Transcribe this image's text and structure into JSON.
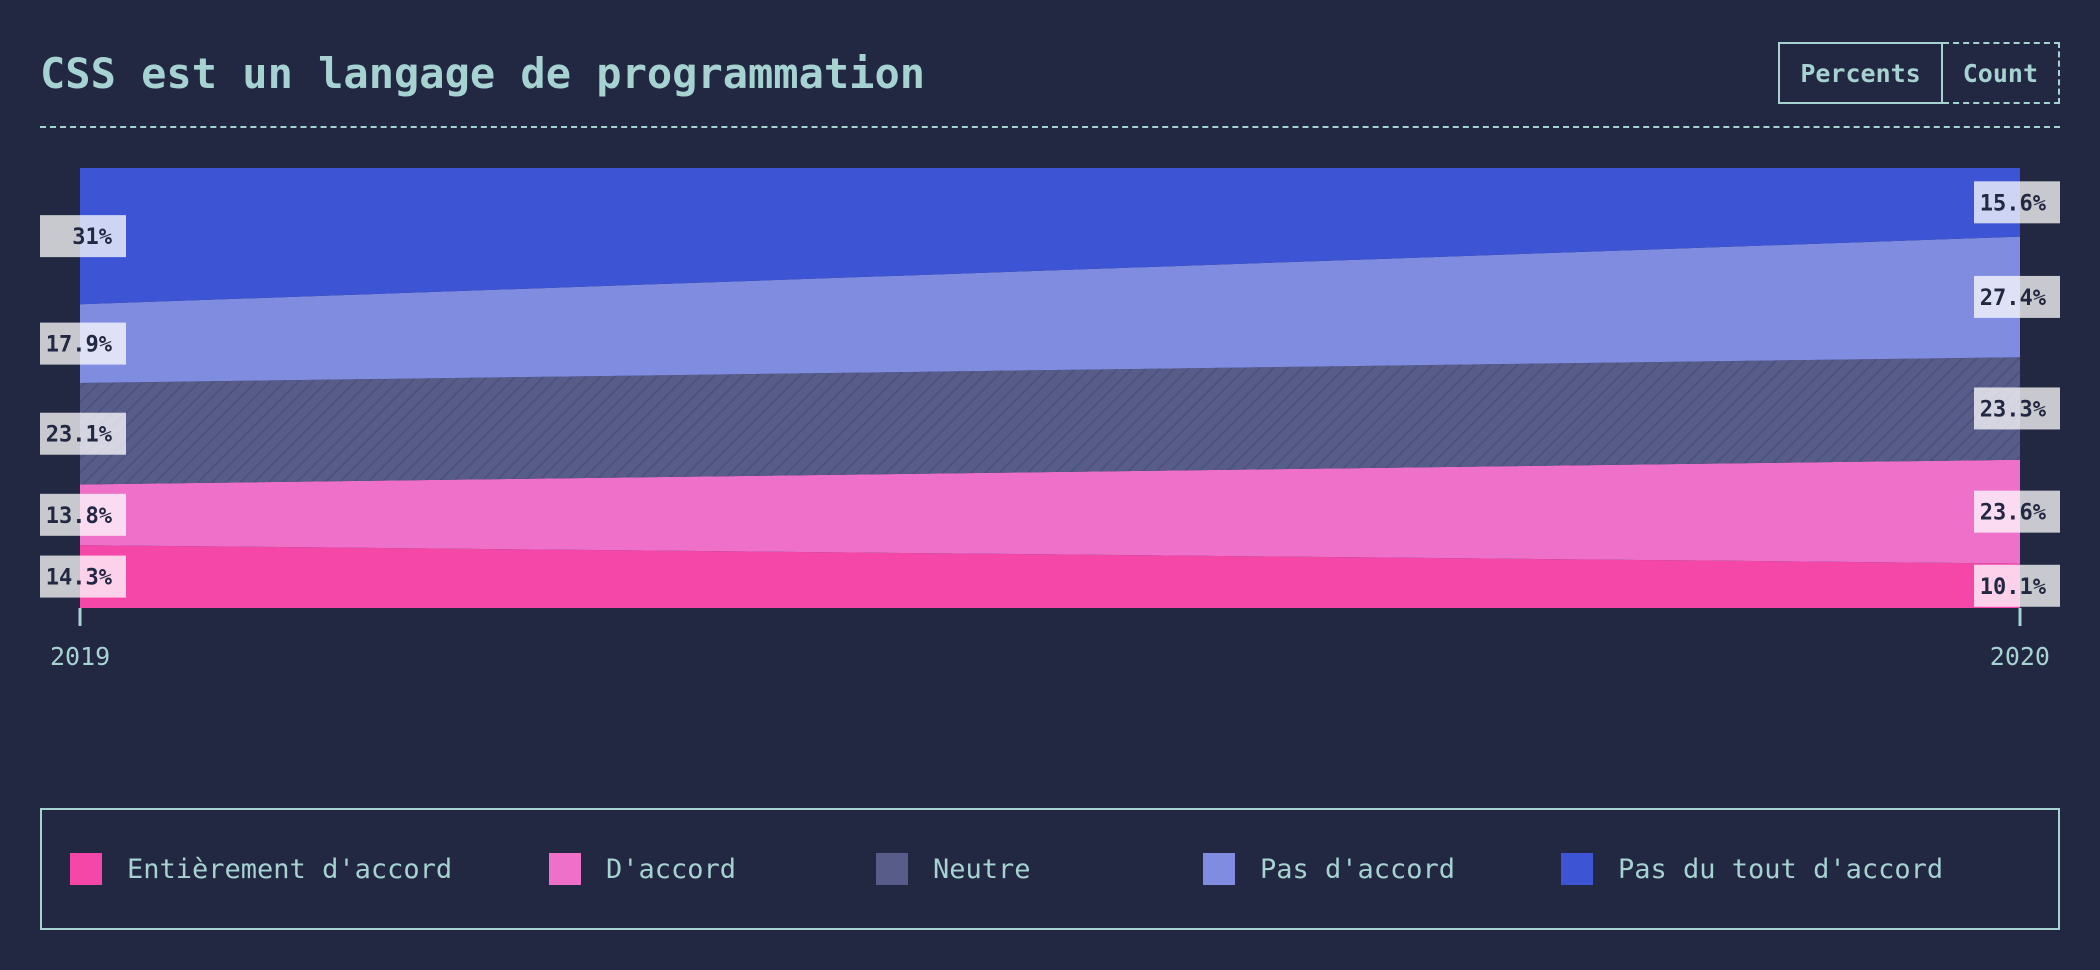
{
  "header": {
    "title": "CSS est un langage de programmation",
    "toggle": [
      {
        "label": "Percents",
        "active": true
      },
      {
        "label": "Count",
        "active": false
      }
    ]
  },
  "chart_data": {
    "type": "area",
    "title": "CSS est un langage de programmation",
    "x": [
      "2019",
      "2020"
    ],
    "stacking": "percent",
    "ylim": [
      0,
      100
    ],
    "grid": false,
    "legend": "bottom",
    "series": [
      {
        "name": "Entièrement d'accord",
        "values": [
          14.3,
          10.1
        ],
        "labels": [
          "14.3%",
          "10.1%"
        ],
        "color": "#f447a7"
      },
      {
        "name": "D'accord",
        "values": [
          13.8,
          23.6
        ],
        "labels": [
          "13.8%",
          "23.6%"
        ],
        "color": "#ee70c8"
      },
      {
        "name": "Neutre",
        "values": [
          23.1,
          23.3
        ],
        "labels": [
          "23.1%",
          "23.3%"
        ],
        "color": "#575c88",
        "pattern": "hatch"
      },
      {
        "name": "Pas d'accord",
        "values": [
          17.9,
          27.4
        ],
        "labels": [
          "17.9%",
          "27.4%"
        ],
        "color": "#7f8ce0"
      },
      {
        "name": "Pas du tout d'accord",
        "values": [
          31.0,
          15.6
        ],
        "labels": [
          "31%",
          "15.6%"
        ],
        "color": "#3d54d4"
      }
    ]
  },
  "colors": {
    "background": "#222841",
    "text": "#a6d2d2",
    "label_box": "#ffffff",
    "label_text": "#222841"
  }
}
